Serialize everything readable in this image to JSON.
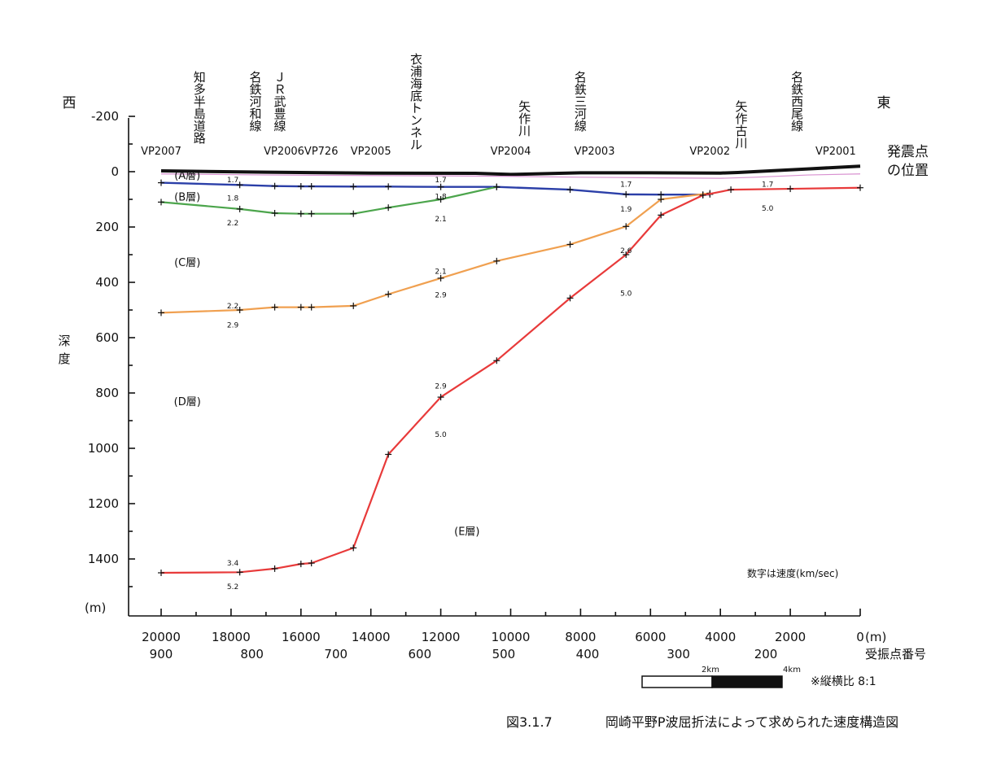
{
  "chart_data": {
    "type": "line",
    "xlabel": "(m)",
    "xlabel2": "受振点番号",
    "ylabel": "深度",
    "yunit": "(m)",
    "xlim": [
      21000,
      0
    ],
    "ylim": [
      -200,
      1600
    ],
    "x_ticks": [
      20000,
      18000,
      16000,
      14000,
      12000,
      10000,
      8000,
      6000,
      4000,
      2000,
      0
    ],
    "x_tick_labels": [
      "20000",
      "18000",
      "16000",
      "14000",
      "12000",
      "10000",
      "8000",
      "6000",
      "4000",
      "2000",
      "0"
    ],
    "receiver_ticks": [
      {
        "x": 20000,
        "label": "900"
      },
      {
        "x": 17400,
        "label": "800"
      },
      {
        "x": 15000,
        "label": "700"
      },
      {
        "x": 12600,
        "label": "600"
      },
      {
        "x": 10200,
        "label": "500"
      },
      {
        "x": 7800,
        "label": "400"
      },
      {
        "x": 5200,
        "label": "300"
      },
      {
        "x": 2700,
        "label": "200"
      }
    ],
    "y_ticks": [
      -200,
      0,
      200,
      400,
      600,
      800,
      1000,
      1200,
      1400
    ],
    "y_tick_labels": [
      "-200",
      "0",
      "200",
      "400",
      "600",
      "800",
      "1000",
      "1200",
      "1400"
    ],
    "west_label": "西",
    "east_label": "東",
    "shot_points_label": "発震点\nの位置",
    "shot_points": [
      {
        "name": "VP2007",
        "x": 20000
      },
      {
        "name": "VP2006VP726",
        "x": 16000
      },
      {
        "name": "VP2005",
        "x": 14000
      },
      {
        "name": "VP2004",
        "x": 10000
      },
      {
        "name": "VP2003",
        "x": 7600
      },
      {
        "name": "VP2002",
        "x": 4300
      },
      {
        "name": "VP2001",
        "x": 700
      }
    ],
    "locations": [
      {
        "name": "知多半島道路",
        "x": 18900
      },
      {
        "name": "名鉄河和線",
        "x": 17300
      },
      {
        "name": "ＪＲ武豊線",
        "x": 16600
      },
      {
        "name": "衣浦海底トンネル",
        "x": 12700
      },
      {
        "name": "矢作川",
        "x": 9600
      },
      {
        "name": "名鉄三河線",
        "x": 8000
      },
      {
        "name": "矢作古川",
        "x": 3400
      },
      {
        "name": "名鉄西尾線",
        "x": 1800
      }
    ],
    "series": [
      {
        "color": "#111111",
        "width": 4,
        "marks": false,
        "x": [
          20000,
          17000,
          14000,
          11000,
          10000,
          8000,
          6000,
          4000,
          3500,
          1500,
          0
        ],
        "y": [
          -3,
          2,
          5,
          6,
          10,
          4,
          4,
          5,
          3,
          -10,
          -20
        ]
      },
      {
        "color": "#d890d0",
        "width": 1.2,
        "marks": false,
        "x": [
          20000,
          17000,
          14000,
          12000,
          10000,
          8000,
          6000,
          4000,
          3000,
          1500,
          0
        ],
        "y": [
          8,
          12,
          14,
          15,
          17,
          20,
          22,
          24,
          20,
          12,
          8
        ]
      },
      {
        "color": "#2b3fa8",
        "width": 2.4,
        "marks": true,
        "x": [
          20000,
          17750,
          16750,
          16000,
          15700,
          14500,
          13500,
          12000,
          10400,
          8300,
          6700,
          5700,
          4500,
          4300
        ],
        "y": [
          40,
          48,
          52,
          53,
          53,
          54,
          54,
          55,
          55,
          65,
          82,
          83,
          83,
          82
        ]
      },
      {
        "color": "#4ca54c",
        "width": 2.2,
        "marks": true,
        "x": [
          20000,
          17750,
          16750,
          16000,
          15700,
          14500,
          13500,
          12000,
          10400
        ],
        "y": [
          110,
          135,
          150,
          152,
          152,
          152,
          130,
          100,
          55
        ]
      },
      {
        "color": "#f0a050",
        "width": 2.2,
        "marks": true,
        "x": [
          20000,
          17750,
          16750,
          16000,
          15700,
          14500,
          13500,
          12000,
          10400,
          8300,
          6700,
          5700,
          4300
        ],
        "y": [
          510,
          500,
          490,
          490,
          490,
          485,
          443,
          385,
          323,
          263,
          198,
          100,
          78
        ]
      },
      {
        "color": "#e83a3a",
        "width": 2.2,
        "marks": true,
        "x": [
          20000,
          17750,
          16750,
          16000,
          15700,
          14500,
          13500,
          12000,
          10400,
          8300,
          6700,
          5700,
          4500,
          3700,
          2000,
          0
        ],
        "y": [
          1450,
          1448,
          1435,
          1418,
          1415,
          1360,
          1022,
          815,
          683,
          457,
          300,
          157,
          85,
          65,
          62,
          58
        ]
      }
    ],
    "layer_labels": [
      {
        "label": "(A層)",
        "x": 19250,
        "y": 12
      },
      {
        "label": "(B層)",
        "x": 19250,
        "y": 90
      },
      {
        "label": "(C層)",
        "x": 19250,
        "y": 327
      },
      {
        "label": "(D層)",
        "x": 19250,
        "y": 830
      },
      {
        "label": "(E層)",
        "x": 11250,
        "y": 1298
      }
    ],
    "velocity_labels": [
      {
        "label": "1.7",
        "x": 17950,
        "y": 30
      },
      {
        "label": "1.8",
        "x": 17950,
        "y": 95
      },
      {
        "label": "2.2",
        "x": 17950,
        "y": 185
      },
      {
        "label": "2.2",
        "x": 17950,
        "y": 485
      },
      {
        "label": "2.9",
        "x": 17950,
        "y": 555
      },
      {
        "label": "3.4",
        "x": 17950,
        "y": 1415
      },
      {
        "label": "5.2",
        "x": 17950,
        "y": 1500
      },
      {
        "label": "1.7",
        "x": 12000,
        "y": 30
      },
      {
        "label": "1.8",
        "x": 12000,
        "y": 90
      },
      {
        "label": "2.1",
        "x": 12000,
        "y": 170
      },
      {
        "label": "2.1",
        "x": 12000,
        "y": 360
      },
      {
        "label": "2.9",
        "x": 12000,
        "y": 445
      },
      {
        "label": "2.9",
        "x": 12000,
        "y": 775
      },
      {
        "label": "5.0",
        "x": 12000,
        "y": 950
      },
      {
        "label": "1.7",
        "x": 6700,
        "y": 45
      },
      {
        "label": "1.9",
        "x": 6700,
        "y": 135
      },
      {
        "label": "2.6",
        "x": 6700,
        "y": 285
      },
      {
        "label": "5.0",
        "x": 6700,
        "y": 440
      },
      {
        "label": "1.7",
        "x": 2650,
        "y": 45
      },
      {
        "label": "5.0",
        "x": 2650,
        "y": 132
      }
    ],
    "note": "数字は速度(km/sec)",
    "scale_labels": [
      "2km",
      "4km"
    ],
    "aspect_note": "※縦横比 8:1"
  },
  "caption_no": "図3.1.7",
  "caption_text": "岡崎平野P波屈折法によって求められた速度構造図"
}
